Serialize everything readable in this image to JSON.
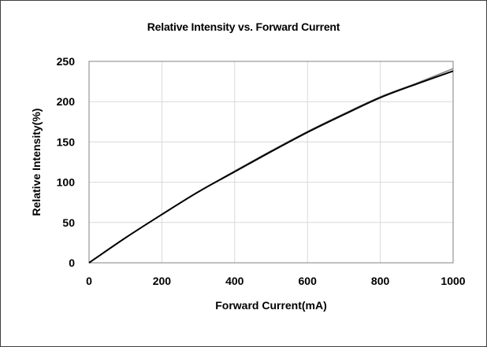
{
  "chart_data": {
    "type": "line",
    "title": "Relative Intensity vs. Forward Current",
    "xlabel": "Forward Current(mA)",
    "ylabel": "Relative Intensity(%)",
    "xlim": [
      0,
      1000
    ],
    "ylim": [
      0,
      250
    ],
    "x_ticks": [
      0,
      200,
      400,
      600,
      800,
      1000
    ],
    "y_ticks": [
      0,
      50,
      100,
      150,
      200,
      250
    ],
    "grid": true,
    "legend": "none",
    "series": [
      {
        "color": "#000000",
        "x": [
          0,
          100,
          200,
          300,
          400,
          500,
          600,
          700,
          800,
          900,
          1000
        ],
        "y": [
          0,
          31,
          60,
          88,
          113,
          138,
          162,
          184,
          205,
          222,
          238
        ]
      },
      {
        "color": "#808080",
        "x": [
          0,
          100,
          200,
          300,
          400,
          500,
          600,
          700,
          800,
          900,
          1000
        ],
        "y": [
          0,
          31,
          60,
          88,
          114,
          139,
          163,
          185,
          206,
          223,
          241
        ]
      }
    ]
  }
}
